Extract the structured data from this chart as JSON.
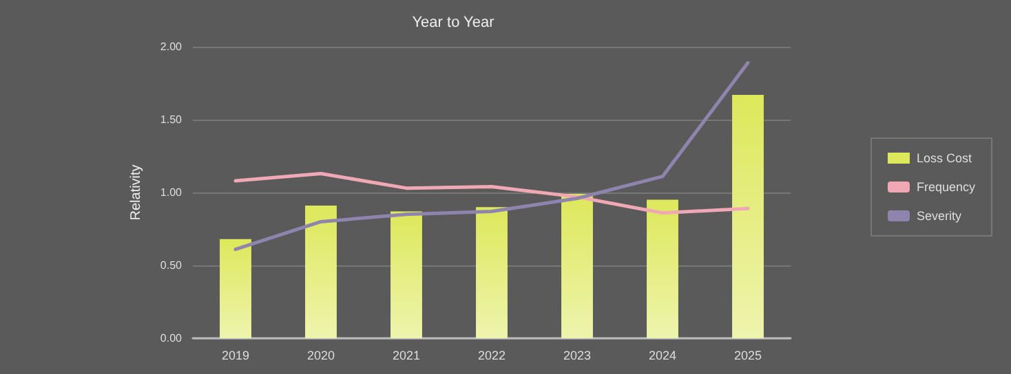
{
  "chart_data": {
    "type": "bar",
    "title": "Year to Year",
    "ylabel": "Relativity",
    "categories": [
      "2019",
      "2020",
      "2021",
      "2022",
      "2023",
      "2024",
      "2025"
    ],
    "series": [
      {
        "name": "Loss Cost",
        "color": "#dde85a",
        "values": [
          0.68,
          0.91,
          0.87,
          0.9,
          0.99,
          0.95,
          1.67
        ]
      },
      {
        "name": "Frequency",
        "type": "line",
        "color": "#f0a8b4",
        "values": [
          1.08,
          1.13,
          1.03,
          1.04,
          0.97,
          0.86,
          0.89
        ]
      },
      {
        "name": "Severity",
        "type": "line",
        "color": "#8e84ae",
        "values": [
          0.61,
          0.8,
          0.85,
          0.87,
          0.96,
          1.11,
          1.89
        ]
      }
    ],
    "ylim": [
      0,
      2
    ],
    "yticks": [
      {
        "value": 0,
        "label": "0.00"
      },
      {
        "value": 0.5,
        "label": "0.50"
      },
      {
        "value": 1,
        "label": "1.00"
      },
      {
        "value": 1.5,
        "label": "1.50"
      },
      {
        "value": 2,
        "label": "2.00"
      }
    ],
    "grid": "y",
    "legend": "right",
    "marker": "none",
    "line_style": "solid"
  }
}
